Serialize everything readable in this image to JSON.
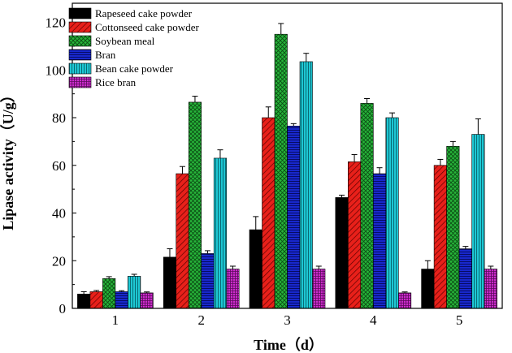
{
  "chart_data": {
    "type": "bar",
    "xlabel": "Time（d）",
    "ylabel": "Lipase activity（U/g）",
    "categories": [
      "1",
      "2",
      "3",
      "4",
      "5"
    ],
    "ylim": [
      0,
      128
    ],
    "yticks": [
      0,
      20,
      40,
      60,
      80,
      100,
      120
    ],
    "grid": false,
    "legend_position": "top-left",
    "series": [
      {
        "name": "Rapeseed cake powder",
        "values": [
          6,
          21.5,
          33,
          46.5,
          16.5
        ],
        "errors": [
          1,
          3.5,
          5.5,
          1,
          3.5
        ],
        "color": "#000000",
        "pattern": "solid"
      },
      {
        "name": "Cottonseed cake powder",
        "values": [
          7,
          56.5,
          80,
          61.5,
          60
        ],
        "errors": [
          0.5,
          3,
          4.5,
          3,
          2.5
        ],
        "color": "#e8201a",
        "pattern": "diagonal"
      },
      {
        "name": "Soybean meal",
        "values": [
          12.5,
          86.5,
          115,
          86,
          68
        ],
        "errors": [
          0.8,
          2.5,
          4.5,
          2,
          2
        ],
        "color": "#27b43a",
        "pattern": "crosshatch"
      },
      {
        "name": "Bran",
        "values": [
          7,
          23,
          76.5,
          56.5,
          25
        ],
        "errors": [
          0.4,
          1.2,
          1,
          2.5,
          1
        ],
        "color": "#1828cc",
        "pattern": "horizontal"
      },
      {
        "name": "Bean cake powder",
        "values": [
          13.5,
          63,
          103.5,
          80,
          73
        ],
        "errors": [
          0.8,
          3.5,
          3.5,
          2,
          6.5
        ],
        "color": "#1ec8d4",
        "pattern": "vertical"
      },
      {
        "name": "Rice bran",
        "values": [
          6.5,
          16.5,
          16.5,
          6.5,
          16.5
        ],
        "errors": [
          0.4,
          1.2,
          1.2,
          0.4,
          1.2
        ],
        "color": "#cc2ccc",
        "pattern": "grid"
      }
    ]
  }
}
